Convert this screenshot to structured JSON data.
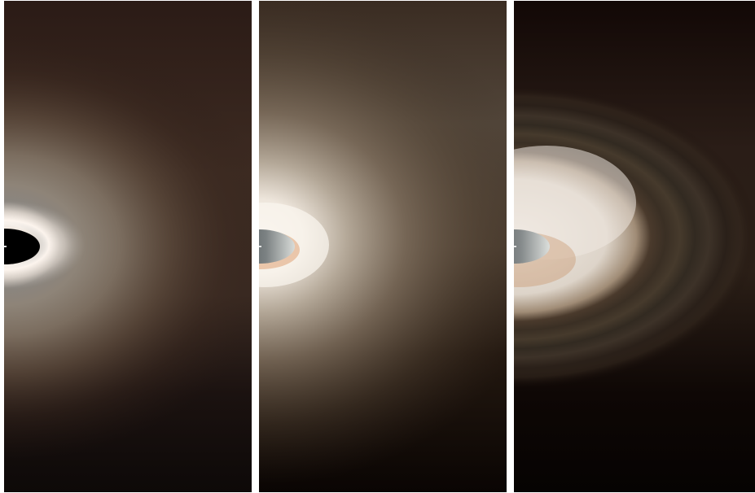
{
  "figure": {
    "description_free": true,
    "panels": [
      {
        "id": "panel-1",
        "shadow_color": "#000000",
        "disk_color": "#8a7d6e",
        "background_top": "#2a1c17",
        "background_bottom": "#0f0a08"
      },
      {
        "id": "panel-2",
        "shadow_color": "#5d6266",
        "disk_color": "#7a6a58",
        "background_top": "#3a2c22",
        "background_bottom": "#0c0603"
      },
      {
        "id": "panel-3",
        "shadow_color": "#6b6f70",
        "disk_color": "#cfc5b8",
        "background_top": "#140a08",
        "background_bottom": "#060302"
      }
    ]
  }
}
